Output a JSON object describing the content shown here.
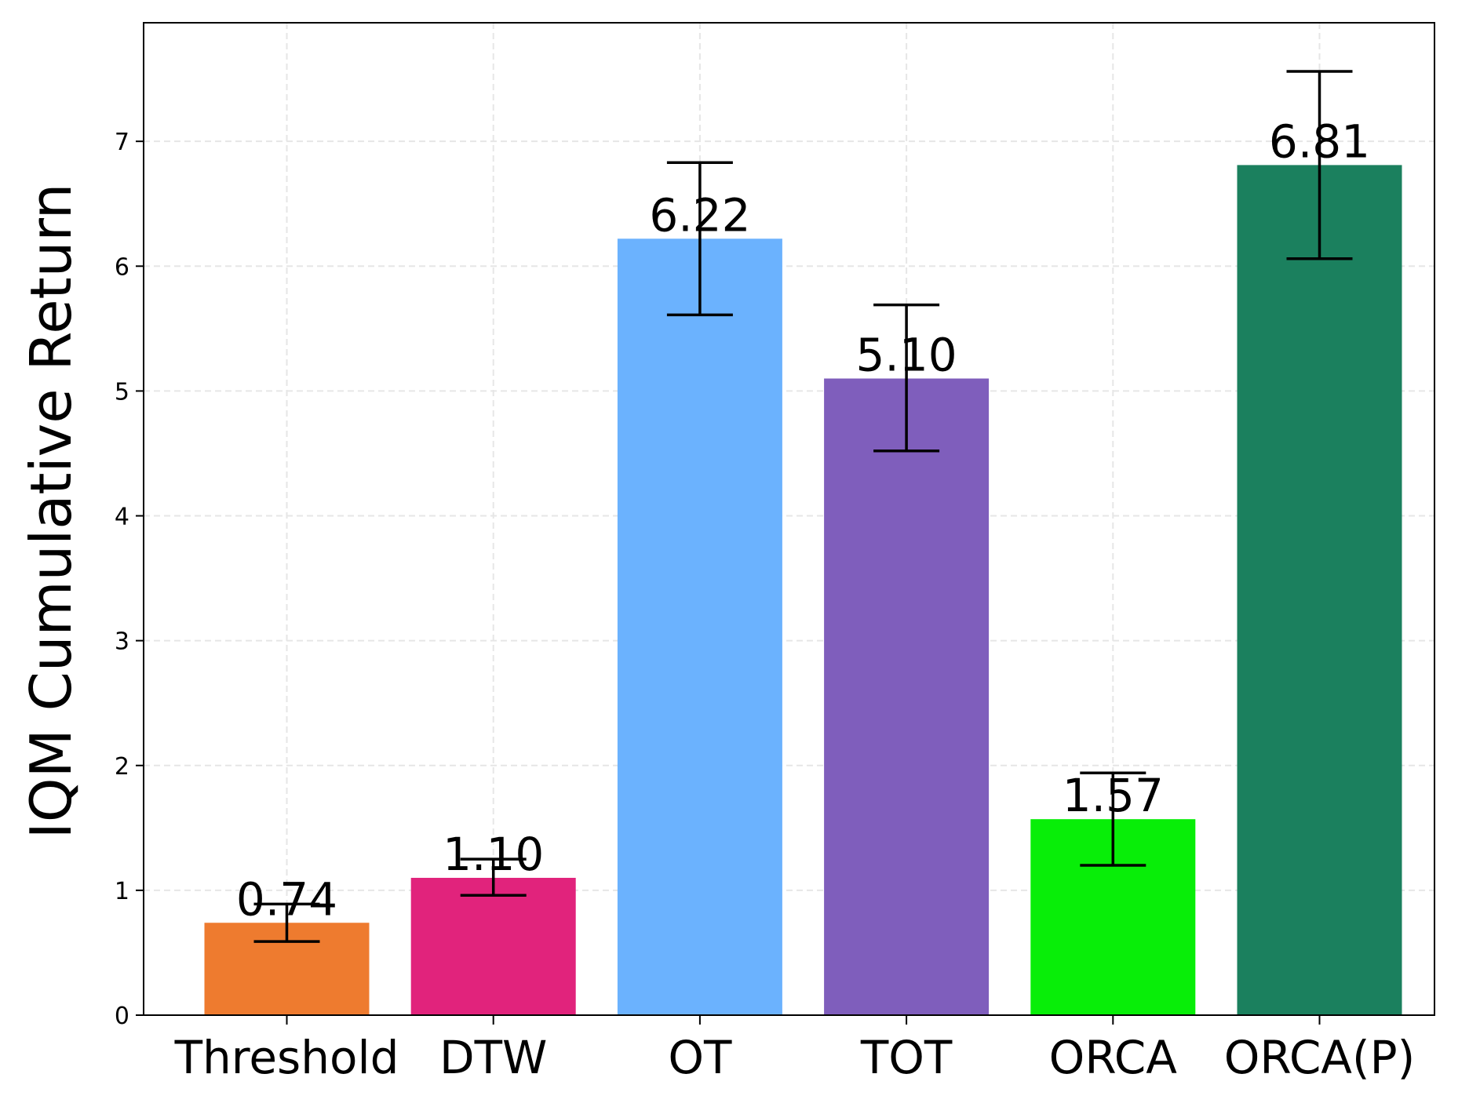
{
  "chart_data": {
    "type": "bar",
    "title": "",
    "xlabel": "",
    "ylabel": "IQM Cumulative Return",
    "categories": [
      "Threshold",
      "DTW",
      "OT",
      "TOT",
      "ORCA",
      "ORCA(P)"
    ],
    "values": [
      0.74,
      1.1,
      6.22,
      5.1,
      1.57,
      6.81
    ],
    "value_labels": [
      "0.74",
      "1.10",
      "6.22",
      "5.10",
      "1.57",
      "6.81"
    ],
    "error_low": [
      0.59,
      0.96,
      5.61,
      4.52,
      1.2,
      6.06
    ],
    "error_high": [
      0.89,
      1.25,
      6.83,
      5.69,
      1.94,
      7.56
    ],
    "colors": [
      "#ee7b2f",
      "#e1237c",
      "#6bb2fe",
      "#7f5ebc",
      "#08ee08",
      "#1b805e"
    ],
    "ylim": [
      0,
      7.95
    ],
    "yticks": [
      0,
      1,
      2,
      3,
      4,
      5,
      6,
      7
    ],
    "grid": true,
    "legend": "none"
  }
}
